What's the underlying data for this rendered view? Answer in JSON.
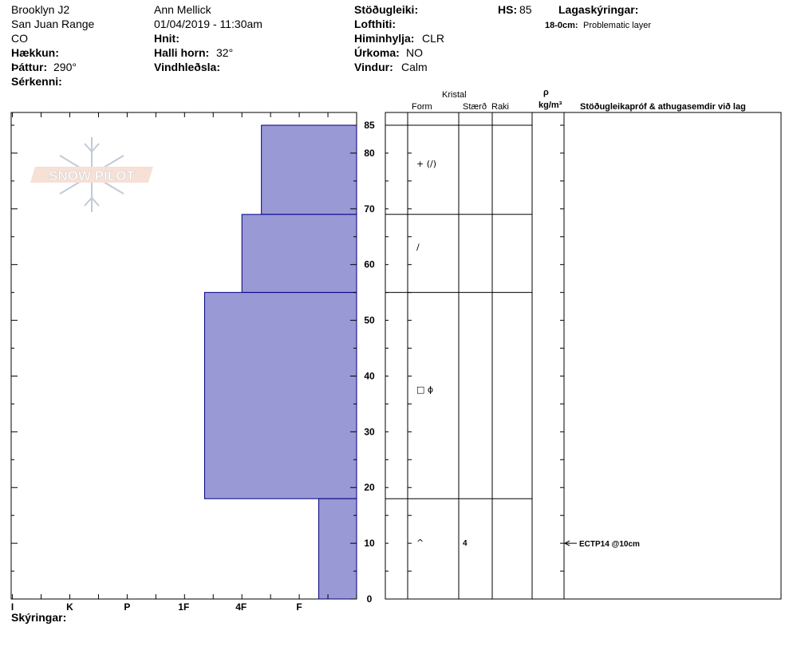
{
  "header": {
    "site": "Brooklyn J2",
    "range": "San Juan Range",
    "state": "CO",
    "elevation_label": "Hækkun:",
    "aspect_label": "Þáttur:",
    "aspect_value": "290°",
    "features_label": "Sérkenni:",
    "observer": "Ann Mellick",
    "datetime": "01/04/2019 - 11:30am",
    "coords_label": "Hnit:",
    "slope_label": "Halli horn:",
    "slope_value": "32°",
    "wind_loading_label": "Vindhleðsla:",
    "stability_label": "Stöðugleiki:",
    "air_temp_label": "Lofthiti:",
    "sky_label": "Himinhylja:",
    "sky_value": "CLR",
    "precip_label": "Úrkoma:",
    "precip_value": "NO",
    "wind_label": "Vindur:",
    "wind_value": "Calm",
    "hs_label": "HS:",
    "hs_value": "85",
    "layer_notes_label": "Lagaskýringar:",
    "layer_note_range": "18-0cm:",
    "layer_note_text": "Problematic layer"
  },
  "columns": {
    "crystal": "Kristal",
    "form": "Form",
    "size": "Stærð",
    "moisture": "Raki",
    "rho": "ρ",
    "density_unit": "kg/m³",
    "tests": "Stöðugleikapróf & athugasemdir við lag"
  },
  "footer": {
    "notes_label": "Skýringar:"
  },
  "logo": {
    "text": "SNOW PILOT"
  },
  "chart_data": {
    "type": "bar",
    "title": "",
    "x_tick_labels": [
      "I",
      "K",
      "P",
      "1F",
      "4F",
      "F"
    ],
    "x_ticks_index": [
      6,
      5,
      4,
      3,
      2,
      1
    ],
    "y_ticks": [
      0,
      10,
      20,
      30,
      40,
      50,
      60,
      70,
      80,
      85
    ],
    "ylim": [
      0,
      85
    ],
    "bar_color": "#9999d6",
    "bar_stroke": "#000080",
    "layers": [
      {
        "top": 85,
        "bottom": 69,
        "hardness": "F+",
        "hardness_index": 1.66,
        "grain": "+ (/)",
        "size": ""
      },
      {
        "top": 69,
        "bottom": 55,
        "hardness": "4F+",
        "hardness_index": 2.0,
        "grain": "/",
        "size": ""
      },
      {
        "top": 55,
        "bottom": 18,
        "hardness": "1F+",
        "hardness_index": 2.65,
        "grain": "□ ϕ",
        "size": ""
      },
      {
        "top": 18,
        "bottom": 0,
        "hardness": "F",
        "hardness_index": 0.66,
        "grain": "^",
        "size": "4"
      }
    ],
    "tests": [
      {
        "depth": 10,
        "text": "ECTP14 @10cm"
      }
    ]
  }
}
